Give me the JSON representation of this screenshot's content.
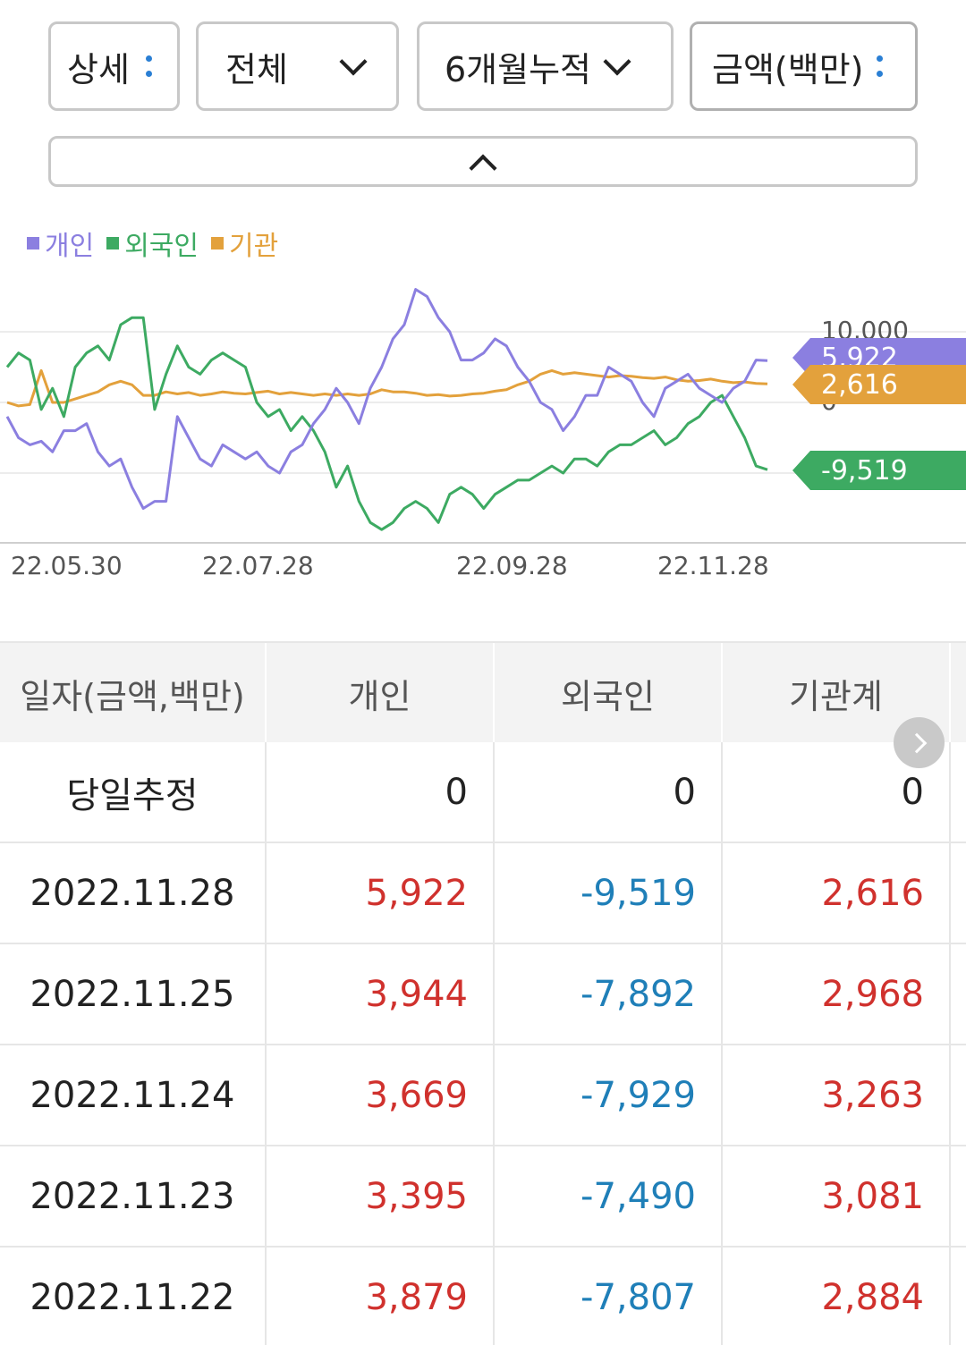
{
  "filters": {
    "detail_label": "상세",
    "scope_label": "전체",
    "period_label": "6개월누적",
    "unit_label": "금액(백만)"
  },
  "colors": {
    "individual": "#8b7fe0",
    "foreign": "#3daa62",
    "institution": "#e3a13c",
    "positive": "#d0312d",
    "negative": "#1f7fb8"
  },
  "chart_data": {
    "type": "line",
    "legend": [
      "개인",
      "외국인",
      "기관"
    ],
    "x_tick_labels": [
      "22.05.30",
      "22.07.28",
      "22.09.28",
      "22.11.28"
    ],
    "y_tick_labels": [
      "10,000",
      "0"
    ],
    "series": [
      {
        "name": "개인",
        "color": "#8b7fe0",
        "last_label": "5,922",
        "values": [
          -2000,
          -5000,
          -6000,
          -5500,
          -7000,
          -4000,
          -4000,
          -3000,
          -7000,
          -9000,
          -8000,
          -12000,
          -15000,
          -14000,
          -14000,
          -2000,
          -5000,
          -8000,
          -9000,
          -6000,
          -7000,
          -8000,
          -7000,
          -9000,
          -10000,
          -7000,
          -6000,
          -3000,
          -1000,
          2000,
          0,
          -3000,
          2000,
          5000,
          9000,
          11000,
          16000,
          15000,
          12000,
          10000,
          6000,
          6000,
          7000,
          9000,
          8000,
          5000,
          3000,
          0,
          -1000,
          -4000,
          -2000,
          1000,
          1000,
          5000,
          4000,
          3000,
          0,
          -2000,
          2000,
          3000,
          4000,
          2000,
          1000,
          0,
          2000,
          3000,
          6000,
          5922
        ]
      },
      {
        "name": "외국인",
        "color": "#3daa62",
        "last_label": "-9,519",
        "values": [
          5000,
          7000,
          6000,
          -1000,
          2000,
          -2000,
          5000,
          7000,
          8000,
          6000,
          11000,
          12000,
          12000,
          -1000,
          4000,
          8000,
          5000,
          4000,
          6000,
          7000,
          6000,
          5000,
          0,
          -2000,
          -1000,
          -4000,
          -2000,
          -4000,
          -7000,
          -12000,
          -9000,
          -14000,
          -17000,
          -18000,
          -17000,
          -15000,
          -14000,
          -15000,
          -17000,
          -13000,
          -12000,
          -13000,
          -15000,
          -13000,
          -12000,
          -11000,
          -11000,
          -10000,
          -9000,
          -10000,
          -8000,
          -8000,
          -9000,
          -7000,
          -6000,
          -6000,
          -5000,
          -4000,
          -6000,
          -5000,
          -3000,
          -2000,
          0,
          1000,
          -2000,
          -5000,
          -9000,
          -9519
        ]
      },
      {
        "name": "기관",
        "color": "#e3a13c",
        "last_label": "2,616",
        "values": [
          0,
          -500,
          -300,
          4500,
          0,
          0,
          500,
          1000,
          1500,
          2500,
          3000,
          2500,
          1000,
          1000,
          1500,
          1200,
          1400,
          1000,
          1200,
          1500,
          1300,
          1200,
          1400,
          1600,
          1200,
          1400,
          1200,
          1000,
          1200,
          1000,
          1200,
          1000,
          1200,
          1800,
          1500,
          1500,
          1300,
          1000,
          1100,
          900,
          1000,
          1200,
          1300,
          1600,
          1800,
          2500,
          3000,
          4000,
          4500,
          4000,
          4200,
          4000,
          3800,
          3600,
          3800,
          3700,
          3500,
          3400,
          3600,
          3200,
          3000,
          3100,
          3300,
          3000,
          2800,
          2900,
          2700,
          2616
        ]
      }
    ]
  },
  "table": {
    "headers": [
      "일자(금액,백만)",
      "개인",
      "외국인",
      "기관계"
    ],
    "rows": [
      {
        "date": "당일추정",
        "individual": "0",
        "foreign": "0",
        "institution": "0"
      },
      {
        "date": "2022.11.28",
        "individual": "5,922",
        "foreign": "-9,519",
        "institution": "2,616"
      },
      {
        "date": "2022.11.25",
        "individual": "3,944",
        "foreign": "-7,892",
        "institution": "2,968"
      },
      {
        "date": "2022.11.24",
        "individual": "3,669",
        "foreign": "-7,929",
        "institution": "3,263"
      },
      {
        "date": "2022.11.23",
        "individual": "3,395",
        "foreign": "-7,490",
        "institution": "3,081"
      },
      {
        "date": "2022.11.22",
        "individual": "3,879",
        "foreign": "-7,807",
        "institution": "2,884"
      }
    ]
  }
}
